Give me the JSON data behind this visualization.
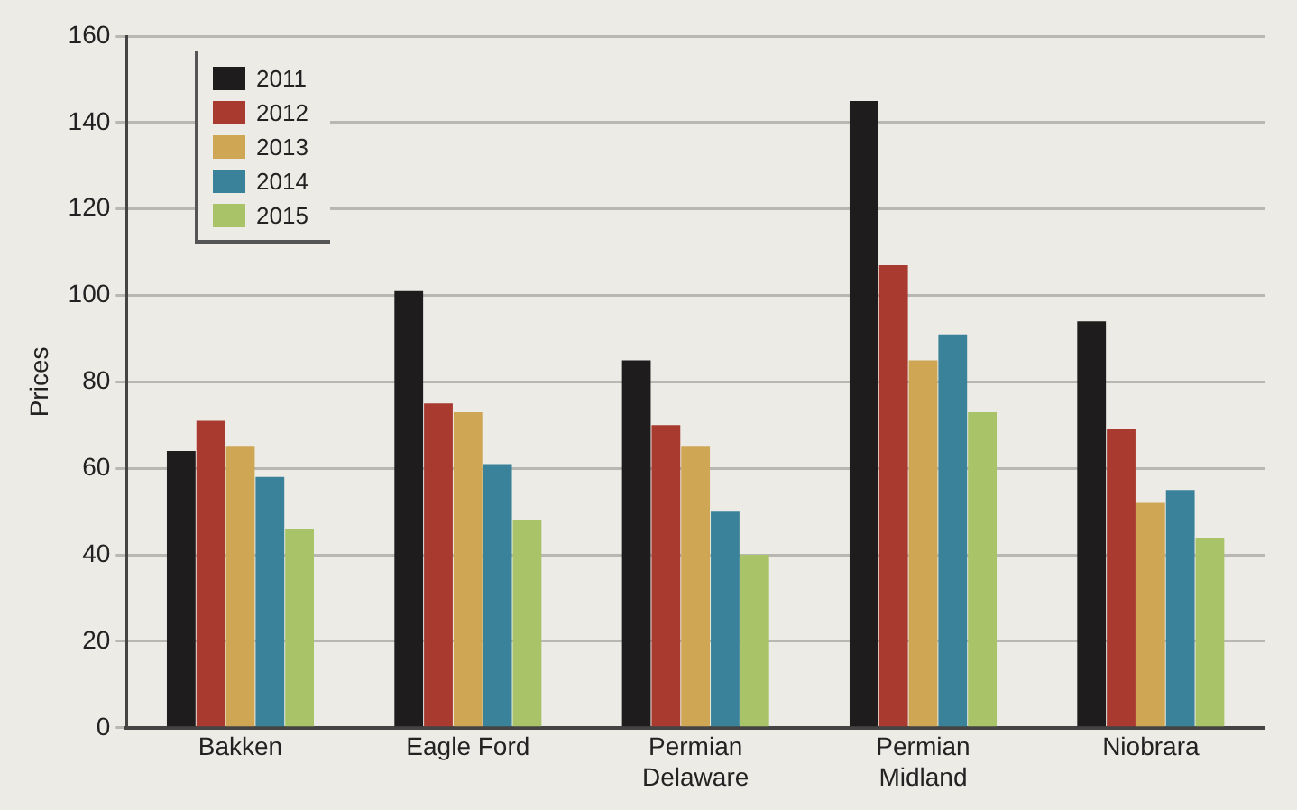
{
  "chart_data": {
    "type": "bar",
    "ylabel": "Prices",
    "categories": [
      "Bakken",
      "Eagle Ford",
      "Permian Delaware",
      "Permian Midland",
      "Niobrara"
    ],
    "series": [
      {
        "name": "2011",
        "color": "#1e1c1c",
        "values": [
          64,
          101,
          85,
          145,
          94
        ]
      },
      {
        "name": "2012",
        "color": "#a93a30",
        "values": [
          71,
          75,
          70,
          107,
          69
        ]
      },
      {
        "name": "2013",
        "color": "#cfa654",
        "values": [
          65,
          73,
          65,
          85,
          52
        ]
      },
      {
        "name": "2014",
        "color": "#3a8299",
        "values": [
          58,
          61,
          50,
          91,
          55
        ]
      },
      {
        "name": "2015",
        "color": "#a9c468",
        "values": [
          46,
          48,
          40,
          73,
          44
        ]
      }
    ],
    "ylim": [
      0,
      160
    ],
    "yticks": [
      0,
      20,
      40,
      60,
      80,
      100,
      120,
      140,
      160
    ],
    "grid": "y",
    "legend": "top left"
  }
}
